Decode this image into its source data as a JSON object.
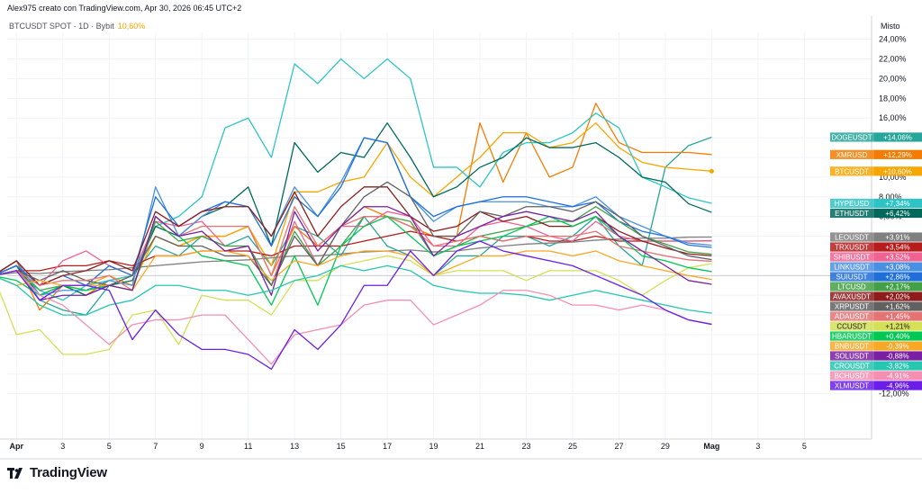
{
  "header": {
    "text": "Alex975 creato con TradingView.com, Apr 30, 2026 06:45 UTC+2"
  },
  "symbol_line": {
    "symbol": "BTCUSDT SPOT · 1D · Bybit",
    "change": "10,60%"
  },
  "scale_mode": "Misto",
  "brand": "TradingView",
  "chart_data": {
    "type": "line",
    "x_tick_labels": [
      "Apr",
      "3",
      "5",
      "7",
      "9",
      "11",
      "13",
      "15",
      "17",
      "19",
      "21",
      "23",
      "25",
      "27",
      "29",
      "Mag",
      "3",
      "5"
    ],
    "x_tick_days": [
      1,
      3,
      5,
      7,
      9,
      11,
      13,
      15,
      17,
      19,
      21,
      23,
      25,
      27,
      29,
      31,
      33,
      35
    ],
    "x_range": [
      0.6,
      37.9
    ],
    "y_ticks": [
      24,
      22,
      20,
      18,
      16,
      14,
      12,
      10,
      8,
      6,
      4,
      2,
      0,
      -2,
      -4,
      -6,
      -8,
      -10,
      -12
    ],
    "y_tick_labels": [
      "24,00%",
      "22,00%",
      "20,00%",
      "18,00%",
      "16,00%",
      "",
      "",
      "10,00%",
      "8,00%",
      "6,00%",
      "",
      "",
      "",
      "",
      "",
      "",
      "",
      "",
      "-12,00%"
    ],
    "y_range": [
      -16.6,
      24.7
    ],
    "grid": true,
    "zero_line": true,
    "legend": "right-axis badges",
    "series": [
      {
        "name": "DOGEUSDT",
        "color": "#26a69a",
        "label": "+14,06%",
        "final": 14.06,
        "values": [
          0,
          1,
          -2.5,
          -3.5,
          -4,
          -1,
          0,
          3,
          2,
          4,
          3,
          4,
          1,
          5,
          4,
          2,
          6,
          3,
          2,
          0,
          2,
          2,
          4,
          4,
          3,
          4,
          6,
          3,
          1,
          11,
          13.2,
          14.06
        ]
      },
      {
        "name": "XMRUSD",
        "color": "#f57c00",
        "label": "+12,29%",
        "final": 12.29,
        "values": [
          0,
          1.5,
          -3.5,
          -1,
          -2,
          -0.5,
          0,
          4,
          3,
          4,
          4,
          5,
          0,
          5,
          3,
          5,
          7,
          6,
          5,
          4,
          4,
          15.5,
          9.5,
          14.5,
          10,
          11,
          17.5,
          13.5,
          12.5,
          12.5,
          12.5,
          12.29
        ]
      },
      {
        "name": "BTCUSDT",
        "color": "#f7a600",
        "label": "+10,60%",
        "final": 10.6,
        "values": [
          0,
          0.5,
          -2,
          -1,
          -1,
          0,
          -1,
          4,
          3,
          4,
          4,
          5,
          1,
          8.5,
          8.5,
          9.5,
          10,
          13.5,
          10,
          8,
          10,
          12,
          14.5,
          14.5,
          13,
          13.5,
          15.5,
          13,
          11.5,
          11,
          10.8,
          10.6
        ]
      },
      {
        "name": "HYPEUSD",
        "color": "#2ec4c6",
        "label": "+7,34%",
        "final": 7.34,
        "values": [
          0,
          1,
          -1.5,
          -2.5,
          -1,
          -0.5,
          0,
          5,
          6,
          8,
          15,
          16,
          12,
          21.5,
          19.5,
          22,
          20,
          22,
          20,
          11,
          11,
          9,
          12.5,
          13.5,
          13.5,
          14.5,
          16.5,
          15,
          10,
          9,
          7.9,
          7.34
        ]
      },
      {
        "name": "ETHUSDT",
        "color": "#00695c",
        "label": "+6,42%",
        "final": 6.42,
        "values": [
          0,
          1,
          -2,
          -1,
          -2,
          -1,
          -0.5,
          5,
          4,
          6,
          7,
          9,
          3,
          13.5,
          10.5,
          12.5,
          12,
          15.5,
          12,
          8,
          9,
          11,
          12,
          14,
          13,
          13,
          13.5,
          12,
          10,
          9.5,
          7.3,
          6.42
        ]
      },
      {
        "name": "LEOUSDT",
        "color": "#808080",
        "label": "+3,91%",
        "final": 3.91,
        "values": [
          0,
          0.3,
          0.2,
          0.4,
          0.5,
          0.6,
          0.8,
          1,
          1.2,
          1.4,
          1.5,
          1.6,
          1.8,
          2,
          2,
          2.2,
          2.4,
          2.5,
          2.6,
          2.4,
          2.5,
          2.8,
          3,
          3.2,
          3.3,
          3.4,
          3.6,
          3.7,
          3.8,
          3.8,
          3.9,
          3.91
        ]
      },
      {
        "name": "TRXUSDT",
        "color": "#b71c1c",
        "label": "+3,54%",
        "final": 3.54,
        "values": [
          0,
          0.5,
          0.5,
          1,
          1,
          1.5,
          1,
          2,
          2,
          2.5,
          2.5,
          2.5,
          2,
          3,
          3,
          3,
          3.5,
          4,
          4.5,
          4,
          3.5,
          4,
          3.5,
          4,
          3.5,
          3.5,
          4,
          3.5,
          3.5,
          3.5,
          3.5,
          3.54
        ]
      },
      {
        "name": "SHIBUSDT",
        "color": "#f06292",
        "label": "+3,52%",
        "final": 3.52,
        "values": [
          0,
          1.5,
          -1,
          1.5,
          2.5,
          1,
          0,
          5.5,
          5,
          5.5,
          3,
          3,
          -1,
          5.5,
          1,
          5,
          5,
          6.5,
          6,
          3,
          3,
          5,
          5.5,
          5,
          4,
          3.5,
          5.5,
          4,
          3.5,
          3.5,
          3.5,
          3.52
        ]
      },
      {
        "name": "LINKUSDT",
        "color": "#4a90e2",
        "label": "+3,08%",
        "final": 3.08,
        "values": [
          0,
          1.5,
          -2,
          -1.5,
          -1.5,
          -0.5,
          -1,
          9,
          4,
          6,
          7.5,
          7,
          4,
          9,
          6,
          9.5,
          14,
          13.5,
          8,
          5.5,
          7,
          7.5,
          7.5,
          7.5,
          7,
          7,
          8,
          6,
          5,
          4,
          3.3,
          3.08
        ]
      },
      {
        "name": "SUIUSDT",
        "color": "#1e6fd9",
        "label": "+2,86%",
        "final": 2.86,
        "values": [
          0,
          1,
          -1,
          0,
          -1,
          1,
          0,
          8,
          5,
          6.5,
          7.5,
          7,
          3,
          8,
          6,
          9,
          14,
          13.5,
          8,
          6,
          7,
          7.5,
          8,
          8,
          7.5,
          7,
          7.5,
          5.5,
          4.5,
          4,
          3.1,
          2.86
        ]
      },
      {
        "name": "LTCUSD",
        "color": "#43a047",
        "label": "+2,17%",
        "final": 2.17,
        "values": [
          0,
          0.5,
          -1.5,
          -1,
          -1.5,
          -1,
          -1.5,
          5.5,
          3.5,
          4,
          3,
          3,
          -1,
          4.5,
          1,
          3,
          6,
          6,
          5.5,
          2,
          3,
          4,
          4.5,
          5,
          5.5,
          5.5,
          7,
          5.5,
          4,
          3.2,
          2.4,
          2.17
        ]
      },
      {
        "name": "AVAXUSDT",
        "color": "#8e1c1c",
        "label": "+2,02%",
        "final": 2.02,
        "values": [
          0,
          1.5,
          -1,
          0,
          0.5,
          1.5,
          0.5,
          6.5,
          5,
          6.5,
          7,
          7,
          4,
          8.5,
          4,
          7,
          9,
          9,
          6,
          4.5,
          5,
          6.5,
          5.5,
          6,
          5,
          5,
          6,
          4.5,
          3.5,
          2.8,
          2.2,
          2.02
        ]
      },
      {
        "name": "XRPUSDT",
        "color": "#616161",
        "label": "+1,62%",
        "final": 1.62,
        "values": [
          0,
          0.5,
          -0.5,
          0.5,
          -0.5,
          -1,
          0,
          4,
          3,
          3,
          2,
          2,
          -1,
          4,
          1,
          5,
          8,
          9.5,
          8,
          4,
          4,
          6.5,
          6,
          7,
          7,
          6.5,
          7.5,
          6,
          4,
          3,
          2,
          1.62
        ]
      },
      {
        "name": "ADAUSDT",
        "color": "#e57373",
        "label": "+1,45%",
        "final": 1.45,
        "values": [
          0,
          0.5,
          -1,
          -0.5,
          -0.5,
          0,
          -1.5,
          6,
          4,
          5,
          5,
          5,
          0,
          7,
          3,
          5,
          6,
          6,
          5,
          3,
          3.5,
          4,
          3.5,
          4,
          4,
          4,
          4.5,
          3,
          2.5,
          2,
          1.6,
          1.45
        ]
      },
      {
        "name": "CCUSDT",
        "color": "#d4e157",
        "label": "+1,21%",
        "final": 1.21,
        "values": [
          0,
          -6,
          -5.5,
          -8,
          -8,
          -7.5,
          -4,
          -3.5,
          -7,
          -2,
          -2.5,
          -2.5,
          -4,
          -0.5,
          -0.5,
          1,
          1.5,
          2,
          1.5,
          0,
          0.5,
          0.5,
          0.5,
          -0.5,
          0.5,
          0.5,
          0.5,
          -0.5,
          -2,
          -0.5,
          0.8,
          1.21
        ]
      },
      {
        "name": "HBARUSDT",
        "color": "#00c853",
        "label": "+0,40%",
        "final": 0.4,
        "values": [
          0,
          -0.5,
          -2,
          -1,
          -1.5,
          -1,
          -1.5,
          6,
          4,
          2,
          1.5,
          1,
          -3,
          2,
          -3,
          3,
          5,
          6,
          4,
          2,
          3,
          3.5,
          4,
          5,
          6,
          5,
          6,
          4,
          2,
          1.5,
          0.8,
          0.4
        ]
      },
      {
        "name": "BNBUSDT",
        "color": "#f9a825",
        "label": "-0,39%",
        "final": -0.39,
        "values": [
          0,
          -1,
          -0.5,
          -1,
          -1,
          -1,
          -1.5,
          2,
          2,
          2.5,
          2.5,
          2,
          -0.5,
          1.5,
          1,
          2,
          2.5,
          2.5,
          2,
          0,
          1,
          2,
          2,
          2.5,
          2.5,
          2,
          2.5,
          1.5,
          1,
          0.5,
          0,
          -0.39
        ]
      },
      {
        "name": "SOLUSDT",
        "color": "#7b1fa2",
        "label": "-0,88%",
        "final": -0.88,
        "values": [
          0,
          0.5,
          -2.5,
          -2,
          -2,
          -1,
          -1.5,
          6,
          4,
          4.5,
          2.5,
          3,
          -2,
          6.5,
          2.5,
          5,
          7,
          7,
          6,
          2,
          4,
          5,
          6,
          6.5,
          6,
          5.5,
          6.5,
          4,
          2.5,
          1,
          -0.5,
          -0.88
        ]
      },
      {
        "name": "CROUSDT",
        "color": "#26c6b0",
        "label": "-3,82%",
        "final": -3.82,
        "values": [
          0,
          -1,
          -3,
          -4,
          -4,
          -3,
          -2.5,
          -1,
          -1,
          -1.5,
          -1.5,
          -2,
          -1.5,
          -0.5,
          0,
          1,
          0.5,
          1,
          0.5,
          -1,
          -1.5,
          -1.8,
          -1.8,
          -2,
          -2.5,
          -2,
          -1.5,
          -2,
          -2.5,
          -3,
          -3.5,
          -3.82
        ]
      },
      {
        "name": "BCHUSDT",
        "color": "#f48fb1",
        "label": "-4,91%",
        "final": -4.91,
        "values": [
          0,
          0.5,
          -2,
          -3,
          -5,
          -7,
          -5,
          -4.5,
          -4.5,
          -4,
          -4,
          -6.5,
          -9,
          -6,
          -5.5,
          -5,
          -3,
          -2.5,
          -2.5,
          -5,
          -4,
          -3,
          -1.5,
          -1.5,
          -2,
          -3,
          -3,
          -3.5,
          -3,
          -3.5,
          -4.5,
          -4.91
        ]
      },
      {
        "name": "XLMUSDT",
        "color": "#6a1ee8",
        "label": "-4,96%",
        "final": -4.96,
        "values": [
          0,
          0.5,
          -2.5,
          -1,
          -1,
          -1.5,
          -6.5,
          -3.5,
          -6,
          -7.5,
          -7.5,
          -8,
          -9.5,
          -5.5,
          -7.5,
          -5,
          -1,
          -1,
          2.5,
          0,
          2.5,
          3.5,
          2.5,
          2,
          1.5,
          1,
          0,
          -1,
          -2,
          -3.5,
          -4.5,
          -4.96
        ]
      }
    ]
  }
}
